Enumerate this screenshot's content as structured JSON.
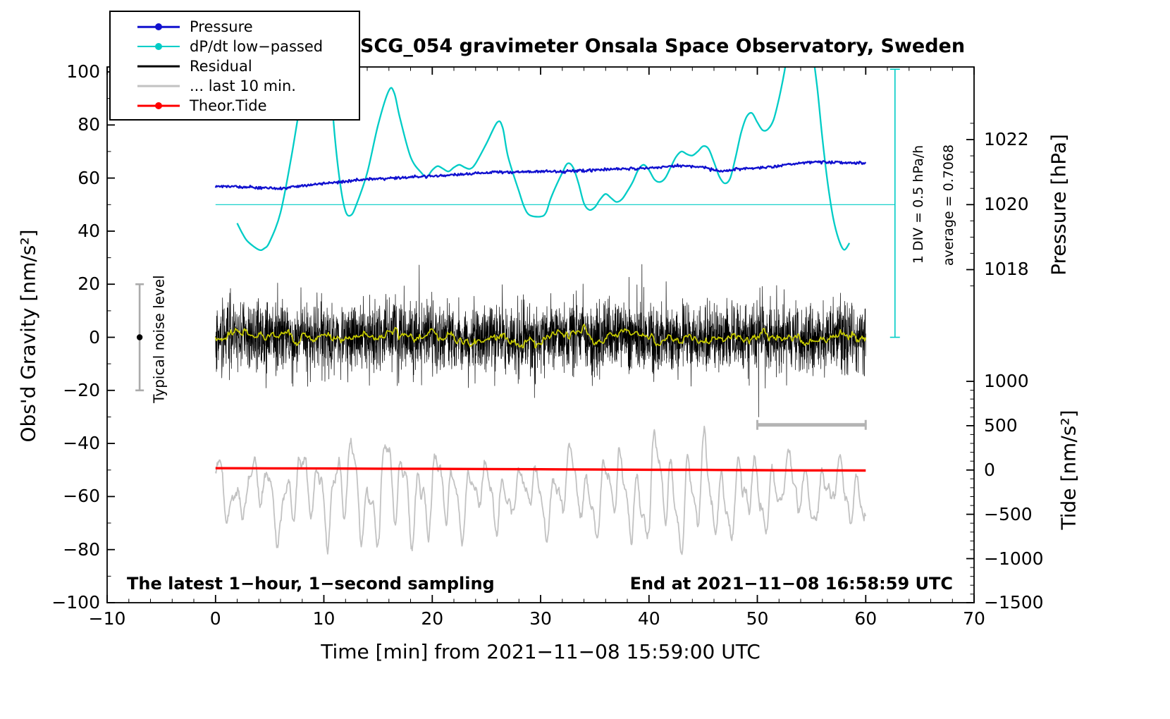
{
  "title": "SCG_054 gravimeter Onsala Space Observatory, Sweden",
  "footer": {
    "sampling_note": "The latest 1−hour, 1−second sampling",
    "end_note": "End at 2021−11−08 16:58:59 UTC"
  },
  "side_annotations": {
    "div_note": "1 DIV = 0.5 hPa/h",
    "average_note": "average = 0.7068",
    "noise_label": "Typical noise level"
  },
  "legend": {
    "items": [
      {
        "label": "Pressure",
        "color": "#1111cf",
        "line_width": 2.5,
        "marker": true
      },
      {
        "label": "dP/dt low−passed",
        "color": "#00ccc6",
        "line_width": 2.2,
        "marker": true
      },
      {
        "label": "Residual",
        "color": "#000000",
        "line_width": 2.8,
        "marker": false
      },
      {
        "label": "... last 10 min.",
        "color": "#c2c2c2",
        "line_width": 2.8,
        "marker": false
      },
      {
        "label": "Theor.Tide",
        "color": "#ff0000",
        "line_width": 2.8,
        "marker": true
      }
    ]
  },
  "chart_data": {
    "type": "line",
    "title": "SCG_054 gravimeter Onsala Space Observatory, Sweden",
    "x_axis": {
      "label": "Time [min] from 2021−11−08 15:59:00 UTC",
      "min": -10,
      "max": 70,
      "major_ticks": [
        -10,
        0,
        10,
        20,
        30,
        40,
        50,
        60,
        70
      ],
      "minor_step": 2
    },
    "y_gravity_axis": {
      "label": "Obs'd Gravity [nm/s²]",
      "min": -100,
      "max": 100,
      "major_ticks": [
        -100,
        -80,
        -60,
        -40,
        -20,
        0,
        20,
        40,
        60,
        80,
        100
      ],
      "minor_step": 10
    },
    "y_pressure_axis": {
      "label": "Pressure [hPa]",
      "major_ticks": [
        1022,
        1020,
        1018
      ],
      "minor_step": 0.5,
      "minor_range": [
        1017.5,
        1022.5
      ],
      "gravity_of_1020": 50,
      "gravity_per_hPa": 12.25
    },
    "y_tide_axis": {
      "label": "Tide [nm/s²]",
      "major_ticks": [
        1000,
        500,
        0,
        -500,
        -1000,
        -1500
      ],
      "minor_step": 100,
      "gravity_of_0": -50,
      "gravity_per_unit": 0.0334
    },
    "noise_level_marker": {
      "x": -7,
      "gravity": 0,
      "half_range": 20,
      "label": "Typical noise level"
    },
    "series": [
      {
        "name": "Pressure",
        "color": "#1111cf",
        "units": "hPa",
        "points_hPa": [
          [
            0,
            1020.56
          ],
          [
            2,
            1020.55
          ],
          [
            4,
            1020.52
          ],
          [
            6,
            1020.5
          ],
          [
            8,
            1020.58
          ],
          [
            10,
            1020.65
          ],
          [
            12,
            1020.72
          ],
          [
            14,
            1020.78
          ],
          [
            16,
            1020.81
          ],
          [
            18,
            1020.85
          ],
          [
            20,
            1020.88
          ],
          [
            22,
            1020.92
          ],
          [
            24,
            1020.96
          ],
          [
            26,
            1021.0
          ],
          [
            28,
            1021.0
          ],
          [
            30,
            1021.02
          ],
          [
            32,
            1021.02
          ],
          [
            34,
            1021.05
          ],
          [
            36,
            1021.08
          ],
          [
            38,
            1021.1
          ],
          [
            40,
            1021.12
          ],
          [
            42,
            1021.18
          ],
          [
            43,
            1021.2
          ],
          [
            45,
            1021.15
          ],
          [
            46,
            1021.06
          ],
          [
            47,
            1021.03
          ],
          [
            48,
            1021.1
          ],
          [
            50,
            1021.13
          ],
          [
            52,
            1021.18
          ],
          [
            54,
            1021.28
          ],
          [
            55,
            1021.32
          ],
          [
            57,
            1021.3
          ],
          [
            59,
            1021.28
          ],
          [
            60,
            1021.3
          ]
        ]
      },
      {
        "name": "dP/dt low−passed",
        "color": "#00ccc6",
        "units": "gravity-axis",
        "average_hPa_per_h": 0.7068,
        "div_hPa_per_h": 0.5,
        "zero_line_gravity": 50,
        "scale_bar": {
          "x_min": 62.7,
          "gravity_top": 101,
          "gravity_bottom": 0
        },
        "points": [
          [
            2,
            43
          ],
          [
            2.5,
            39
          ],
          [
            3,
            36
          ],
          [
            4,
            33
          ],
          [
            4.5,
            33.5
          ],
          [
            5,
            36
          ],
          [
            6,
            47
          ],
          [
            7,
            68
          ],
          [
            8,
            92
          ],
          [
            9,
            110
          ],
          [
            10,
            113
          ],
          [
            10.5,
            101
          ],
          [
            11,
            76
          ],
          [
            11.5,
            58
          ],
          [
            12,
            47.5
          ],
          [
            12.5,
            46
          ],
          [
            13,
            50
          ],
          [
            14,
            62
          ],
          [
            15,
            80
          ],
          [
            16,
            93
          ],
          [
            16.5,
            92
          ],
          [
            17,
            83
          ],
          [
            18,
            68
          ],
          [
            19,
            62
          ],
          [
            19.5,
            60.5
          ],
          [
            20,
            63
          ],
          [
            20.5,
            64.5
          ],
          [
            21,
            63.5
          ],
          [
            21.5,
            62.5
          ],
          [
            22,
            64
          ],
          [
            22.5,
            65
          ],
          [
            23,
            64
          ],
          [
            23.5,
            63.5
          ],
          [
            24,
            65.5
          ],
          [
            25,
            73
          ],
          [
            26,
            81
          ],
          [
            26.5,
            79
          ],
          [
            27,
            68
          ],
          [
            28,
            55
          ],
          [
            28.5,
            49
          ],
          [
            29,
            46
          ],
          [
            30,
            45.5
          ],
          [
            30.5,
            47
          ],
          [
            31,
            53
          ],
          [
            32,
            62
          ],
          [
            32.5,
            65.5
          ],
          [
            33,
            64
          ],
          [
            33.5,
            58
          ],
          [
            34,
            50.5
          ],
          [
            34.5,
            48
          ],
          [
            35,
            49
          ],
          [
            35.5,
            52
          ],
          [
            36,
            54
          ],
          [
            36.5,
            52.5
          ],
          [
            37,
            51
          ],
          [
            37.5,
            52
          ],
          [
            38,
            55
          ],
          [
            38.5,
            58.5
          ],
          [
            39,
            63
          ],
          [
            39.5,
            65
          ],
          [
            40,
            63
          ],
          [
            40.5,
            59.5
          ],
          [
            41,
            58.5
          ],
          [
            41.5,
            60
          ],
          [
            42,
            64
          ],
          [
            42.5,
            68
          ],
          [
            43,
            70
          ],
          [
            43.5,
            69
          ],
          [
            44,
            68.5
          ],
          [
            44.5,
            70
          ],
          [
            45,
            72
          ],
          [
            45.5,
            71
          ],
          [
            46,
            66
          ],
          [
            46.5,
            60.5
          ],
          [
            47,
            58
          ],
          [
            47.5,
            60
          ],
          [
            48,
            68
          ],
          [
            48.5,
            77
          ],
          [
            49,
            83
          ],
          [
            49.5,
            84.5
          ],
          [
            50,
            81
          ],
          [
            50.5,
            78
          ],
          [
            51,
            78.5
          ],
          [
            51.5,
            82
          ],
          [
            52,
            90
          ],
          [
            52.5,
            100
          ],
          [
            53,
            112
          ],
          [
            54,
            118
          ],
          [
            55,
            108
          ],
          [
            55.5,
            95
          ],
          [
            56,
            75
          ],
          [
            56.5,
            58
          ],
          [
            57,
            45
          ],
          [
            57.5,
            37
          ],
          [
            58,
            33
          ],
          [
            58.5,
            35.5
          ]
        ]
      },
      {
        "name": "Residual",
        "color": "#000000",
        "center": 0,
        "std": 6.5,
        "max_abs": 30,
        "sampling_seconds": 1,
        "duration_min": 60
      },
      {
        "name": "Residual smoothed",
        "color": "#c8cc00"
      },
      {
        "name": "... last 10 min.",
        "color": "#c2c2c2",
        "center": -59,
        "range": [
          -85,
          -33
        ],
        "window_minutes": 10,
        "window_bar": {
          "x_start": 50,
          "x_end": 60,
          "gravity": -33
        }
      },
      {
        "name": "Theor.Tide",
        "color": "#ff0000",
        "units": "tide",
        "points_tide": [
          [
            0,
            20
          ],
          [
            5,
            19
          ],
          [
            10,
            17
          ],
          [
            15,
            15
          ],
          [
            20,
            13
          ],
          [
            25,
            11
          ],
          [
            30,
            8
          ],
          [
            35,
            5
          ],
          [
            40,
            3
          ],
          [
            45,
            1
          ],
          [
            50,
            -2
          ],
          [
            55,
            -4
          ],
          [
            60,
            -6
          ]
        ]
      }
    ]
  }
}
